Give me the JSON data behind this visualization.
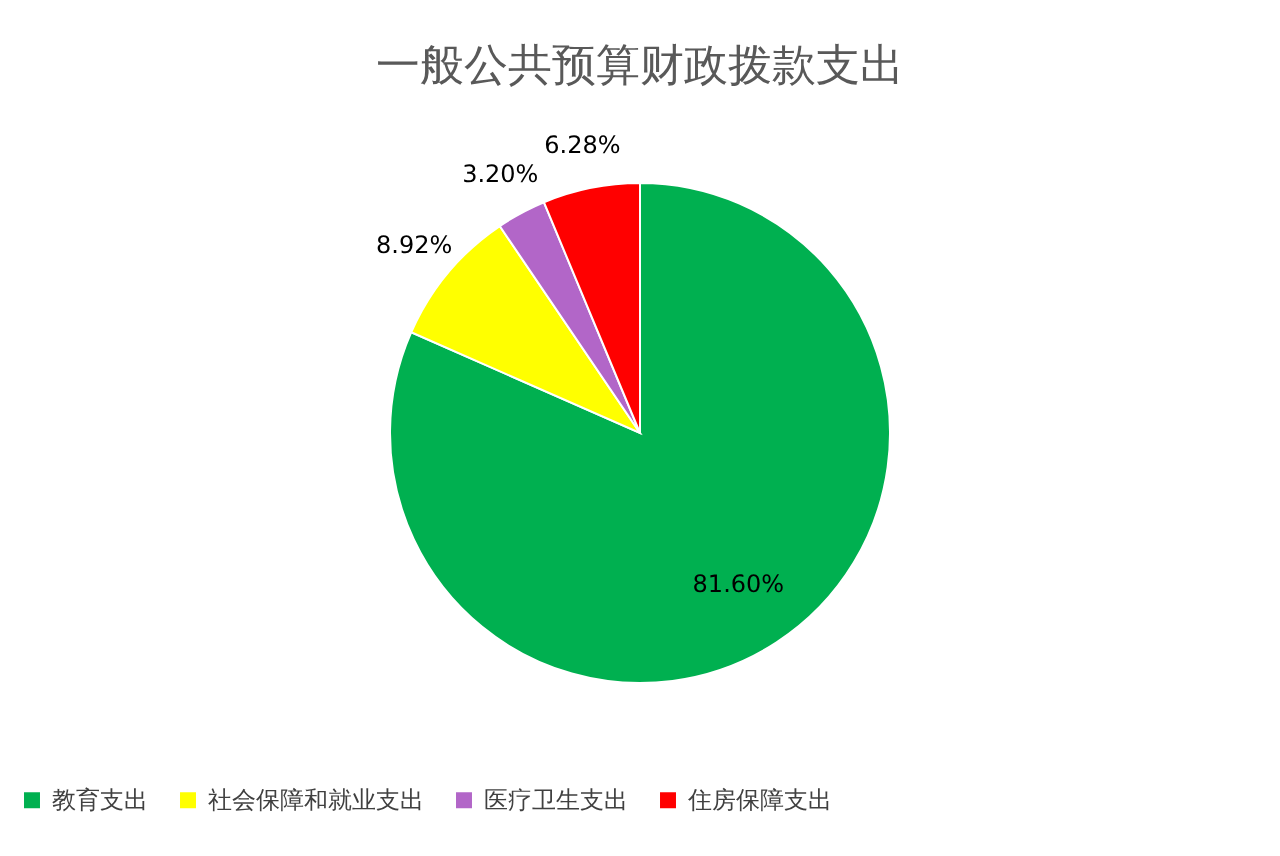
{
  "chart_data": {
    "type": "pie",
    "title": "一般公共预算财政拨款支出",
    "categories": [
      "教育支出",
      "社会保障和就业支出",
      "医疗卫生支出",
      "住房保障支出"
    ],
    "values": [
      81.6,
      8.92,
      3.2,
      6.28
    ],
    "colors": [
      "#00b050",
      "#ffff00",
      "#b266c8",
      "#ff0000"
    ],
    "value_labels": [
      "81.60%",
      "8.92%",
      "3.20%",
      "6.28%"
    ],
    "legend": "bottom"
  }
}
